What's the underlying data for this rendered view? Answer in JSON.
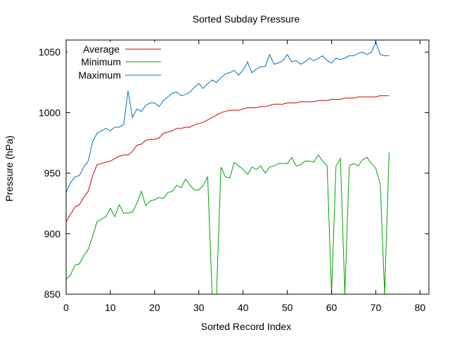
{
  "chart_data": {
    "type": "line",
    "title": "Sorted Subday Pressure",
    "xlabel": "Sorted Record Index",
    "ylabel": "Pressure (hPa)",
    "xlim": [
      0,
      82
    ],
    "ylim": [
      850,
      1060
    ],
    "xticks": [
      "0",
      "10",
      "20",
      "30",
      "40",
      "50",
      "60",
      "70",
      "80"
    ],
    "xtick_values": [
      0,
      10,
      20,
      30,
      40,
      50,
      60,
      70,
      80
    ],
    "yticks": [
      "850",
      "900",
      "950",
      "1000",
      "1050"
    ],
    "ytick_values": [
      850,
      900,
      950,
      1000,
      1050
    ],
    "grid": false,
    "legend_position": "top-left",
    "x": [
      0,
      1,
      2,
      3,
      4,
      5,
      6,
      7,
      8,
      9,
      10,
      11,
      12,
      13,
      14,
      15,
      16,
      17,
      18,
      19,
      20,
      21,
      22,
      23,
      24,
      25,
      26,
      27,
      28,
      29,
      30,
      31,
      32,
      33,
      34,
      35,
      36,
      37,
      38,
      39,
      40,
      41,
      42,
      43,
      44,
      45,
      46,
      47,
      48,
      49,
      50,
      51,
      52,
      53,
      54,
      55,
      56,
      57,
      58,
      59,
      60,
      61,
      62,
      63,
      64,
      65,
      66,
      67,
      68,
      69,
      70,
      71,
      72,
      73
    ],
    "series": [
      {
        "name": "Average",
        "color": "#cc0000",
        "values": [
          910,
          916,
          922,
          924,
          930,
          935,
          948,
          957,
          958,
          959,
          960,
          962,
          964,
          965,
          965,
          968,
          973,
          974,
          977,
          978,
          978,
          979,
          983,
          984,
          985,
          987,
          987,
          988,
          988,
          990,
          991,
          992,
          994,
          996,
          998,
          1000,
          1001,
          1002,
          1002,
          1002,
          1003,
          1004,
          1004,
          1004,
          1005,
          1005,
          1006,
          1007,
          1007,
          1007,
          1008,
          1008,
          1008,
          1009,
          1009,
          1009,
          1009,
          1010,
          1010,
          1010,
          1011,
          1011,
          1011,
          1012,
          1012,
          1012,
          1013,
          1013,
          1013,
          1013,
          1013,
          1014,
          1014,
          1014
        ]
      },
      {
        "name": "Minimum",
        "color": "#00a000",
        "values": [
          862,
          866,
          874,
          875,
          882,
          887,
          898,
          910,
          912,
          914,
          921,
          914,
          924,
          917,
          917,
          918,
          925,
          935,
          923,
          927,
          928,
          930,
          929,
          934,
          935,
          940,
          938,
          945,
          940,
          936,
          936,
          940,
          947,
          850,
          850,
          955,
          947,
          946,
          959,
          956,
          953,
          949,
          955,
          953,
          956,
          950,
          955,
          956,
          958,
          958,
          958,
          963,
          956,
          957,
          960,
          960,
          959,
          965,
          960,
          956,
          850,
          956,
          962,
          850,
          956,
          958,
          956,
          961,
          963,
          958,
          954,
          941,
          850,
          967
        ]
      },
      {
        "name": "Maximum",
        "color": "#0070c8",
        "values": [
          934,
          942,
          947,
          948,
          955,
          960,
          976,
          983,
          985,
          987,
          985,
          988,
          988,
          990,
          1018,
          996,
          1003,
          1001,
          1006,
          1008,
          1008,
          1005,
          1010,
          1013,
          1016,
          1017,
          1014,
          1015,
          1017,
          1021,
          1024,
          1020,
          1024,
          1027,
          1025,
          1029,
          1032,
          1033,
          1035,
          1031,
          1035,
          1042,
          1033,
          1036,
          1038,
          1038,
          1048,
          1040,
          1041,
          1043,
          1048,
          1042,
          1043,
          1040,
          1042,
          1045,
          1043,
          1045,
          1047,
          1043,
          1041,
          1045,
          1044,
          1045,
          1047,
          1047,
          1049,
          1050,
          1048,
          1050,
          1058,
          1048,
          1047,
          1047
        ]
      }
    ]
  }
}
